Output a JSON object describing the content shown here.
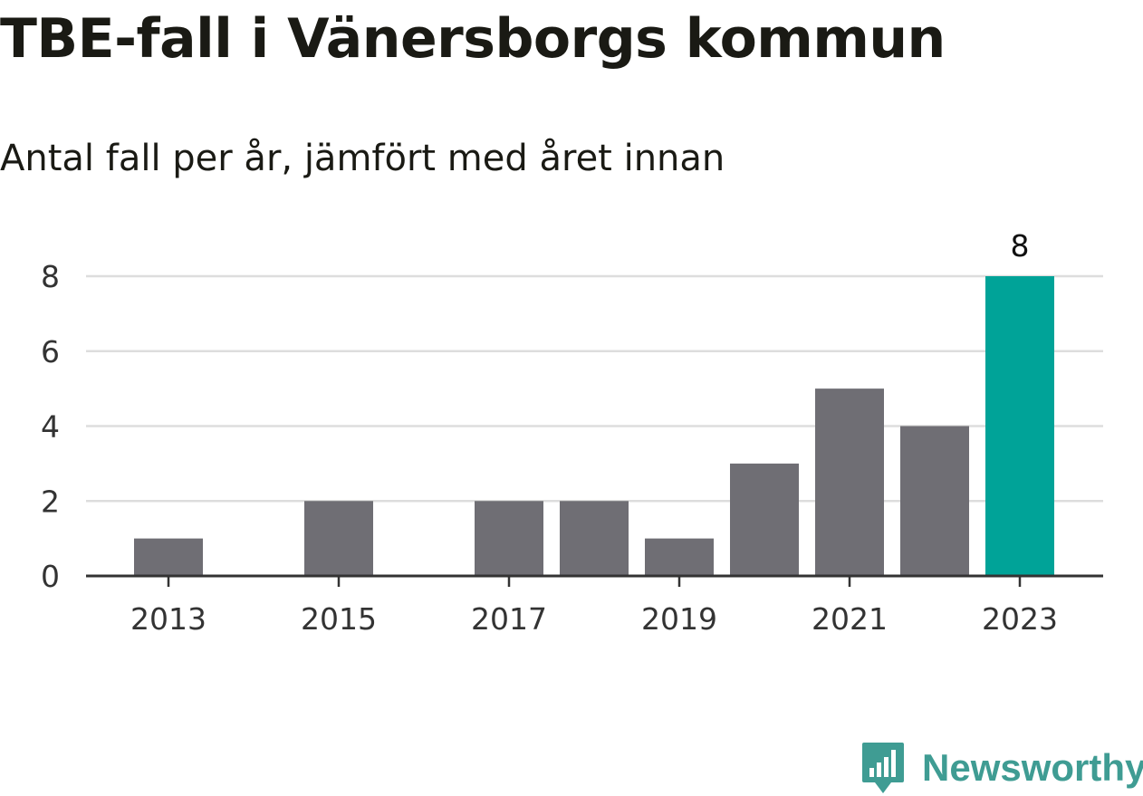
{
  "header": {
    "title": "TBE-fall i Vänersborgs kommun",
    "subtitle": "Antal fall per år, jämfört med året innan"
  },
  "chart_data": {
    "type": "bar",
    "title": "TBE-fall i Vänersborgs kommun",
    "subtitle": "Antal fall per år, jämfört med året innan",
    "xlabel": "",
    "ylabel": "",
    "categories": [
      "2013",
      "2014",
      "2015",
      "2016",
      "2017",
      "2018",
      "2019",
      "2020",
      "2021",
      "2022",
      "2023"
    ],
    "values": [
      1,
      0,
      2,
      0,
      2,
      2,
      1,
      3,
      5,
      4,
      8
    ],
    "x_tick_labels": [
      "2013",
      "2015",
      "2017",
      "2019",
      "2021",
      "2023"
    ],
    "y_ticks": [
      "0",
      "2",
      "4",
      "6",
      "8"
    ],
    "ylim": [
      0,
      8
    ],
    "grid": true,
    "highlight_category": "2023",
    "highlight_label": "8",
    "colors": {
      "bar": "#6f6e74",
      "highlight": "#00a398",
      "grid": "#dddddd",
      "axis": "#333333"
    }
  },
  "footer": {
    "brand": "Newsworthy",
    "brand_color": "#3f9c93",
    "logo_icon": "newsworthy-logo-icon"
  }
}
